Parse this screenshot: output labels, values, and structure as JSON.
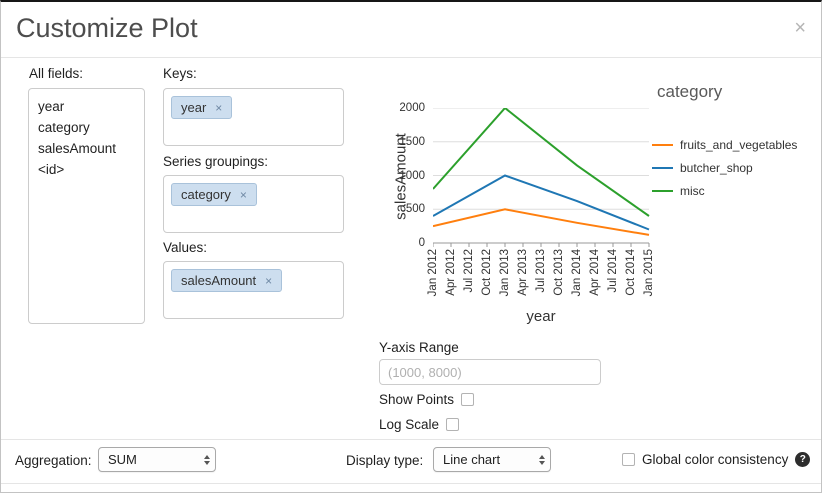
{
  "icons": {
    "close": "×",
    "remove": "×",
    "help": "?"
  },
  "dialog": {
    "title": "Customize Plot"
  },
  "fields_panel": {
    "label": "All fields:",
    "items": [
      "year",
      "category",
      "salesAmount",
      "<id>"
    ]
  },
  "keys_panel": {
    "label": "Keys:",
    "tokens": [
      "year"
    ]
  },
  "series_panel": {
    "label": "Series groupings:",
    "tokens": [
      "category"
    ]
  },
  "values_panel": {
    "label": "Values:",
    "tokens": [
      "salesAmount"
    ]
  },
  "options": {
    "y_axis_range_label": "Y-axis Range",
    "y_axis_range_value": "",
    "y_axis_range_placeholder": "(1000, 8000)",
    "show_points_label": "Show Points",
    "show_points_checked": false,
    "log_scale_label": "Log Scale",
    "log_scale_checked": false
  },
  "footer": {
    "aggregation_label": "Aggregation:",
    "aggregation_value": "SUM",
    "display_type_label": "Display type:",
    "display_type_value": "Line chart",
    "global_color_label": "Global color consistency",
    "global_color_checked": false
  },
  "chart_data": {
    "type": "line",
    "title": "",
    "xlabel": "year",
    "ylabel": "salesAmount",
    "legend_title": "category",
    "legend_position": "right",
    "grid": "horizontal",
    "x_tick_labels": [
      "Jan 2012",
      "Apr 2012",
      "Jul 2012",
      "Oct 2012",
      "Jan 2013",
      "Apr 2013",
      "Jul 2013",
      "Oct 2013",
      "Jan 2014",
      "Apr 2014",
      "Jul 2014",
      "Oct 2014",
      "Jan 2015"
    ],
    "y_ticks": [
      0,
      500,
      1000,
      1500,
      2000
    ],
    "ylim": [
      0,
      2000
    ],
    "series": [
      {
        "name": "fruits_and_vegetables",
        "color": "#ff7f0e",
        "x_tick_indices": [
          0,
          4,
          8,
          12
        ],
        "values": [
          250,
          500,
          300,
          120
        ]
      },
      {
        "name": "butcher_shop",
        "color": "#1f77b4",
        "x_tick_indices": [
          0,
          4,
          8,
          12
        ],
        "values": [
          400,
          1000,
          620,
          200
        ]
      },
      {
        "name": "misc",
        "color": "#2ca02c",
        "x_tick_indices": [
          0,
          4,
          8,
          12
        ],
        "values": [
          800,
          2000,
          1150,
          400
        ]
      }
    ]
  }
}
